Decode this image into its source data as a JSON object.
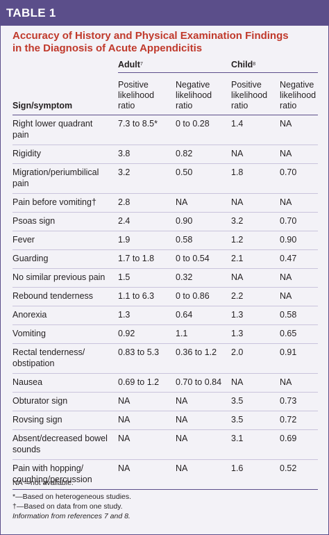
{
  "banner": "TABLE 1",
  "title_lines": [
    "Accuracy of History and Physical Examination Findings",
    "in the Diagnosis of Acute Appendicitis"
  ],
  "groups": {
    "adult": {
      "label": "Adult",
      "ref": "7"
    },
    "child": {
      "label": "Child",
      "ref": "8"
    }
  },
  "headers": {
    "symptom": "Sign/symptom",
    "positive": [
      "Positive",
      "likelihood",
      "ratio"
    ],
    "negative": [
      "Negative",
      "likelihood",
      "ratio"
    ]
  },
  "rows": [
    {
      "name": [
        "Right lower quadrant",
        "pain"
      ],
      "adult_pos": "7.3 to 8.5*",
      "adult_neg": "0 to 0.28",
      "child_pos": "1.4",
      "child_neg": "NA"
    },
    {
      "name": [
        "Rigidity"
      ],
      "adult_pos": "3.8",
      "adult_neg": "0.82",
      "child_pos": "NA",
      "child_neg": "NA"
    },
    {
      "name": [
        "Migration/periumbilical",
        "pain"
      ],
      "adult_pos": "3.2",
      "adult_neg": "0.50",
      "child_pos": "1.8",
      "child_neg": "0.70"
    },
    {
      "name": [
        "Pain before vomiting†"
      ],
      "adult_pos": "2.8",
      "adult_neg": "NA",
      "child_pos": "NA",
      "child_neg": "NA"
    },
    {
      "name": [
        "Psoas sign"
      ],
      "adult_pos": "2.4",
      "adult_neg": "0.90",
      "child_pos": "3.2",
      "child_neg": "0.70"
    },
    {
      "name": [
        "Fever"
      ],
      "adult_pos": "1.9",
      "adult_neg": "0.58",
      "child_pos": "1.2",
      "child_neg": "0.90"
    },
    {
      "name": [
        "Guarding"
      ],
      "adult_pos": "1.7 to 1.8",
      "adult_neg": "0 to 0.54",
      "child_pos": "2.1",
      "child_neg": "0.47"
    },
    {
      "name": [
        "No similar previous pain"
      ],
      "adult_pos": "1.5",
      "adult_neg": "0.32",
      "child_pos": "NA",
      "child_neg": "NA"
    },
    {
      "name": [
        "Rebound tenderness"
      ],
      "adult_pos": "1.1 to 6.3",
      "adult_neg": "0 to 0.86",
      "child_pos": "2.2",
      "child_neg": "NA"
    },
    {
      "name": [
        "Anorexia"
      ],
      "adult_pos": "1.3",
      "adult_neg": "0.64",
      "child_pos": "1.3",
      "child_neg": "0.58"
    },
    {
      "name": [
        "Vomiting"
      ],
      "adult_pos": "0.92",
      "adult_neg": "1.1",
      "child_pos": "1.3",
      "child_neg": "0.65"
    },
    {
      "name": [
        "Rectal tenderness/",
        "obstipation"
      ],
      "adult_pos": "0.83 to 5.3",
      "adult_neg": "0.36 to 1.2",
      "child_pos": "2.0",
      "child_neg": "0.91"
    },
    {
      "name": [
        "Nausea"
      ],
      "adult_pos": "0.69 to 1.2",
      "adult_neg": "0.70 to 0.84",
      "child_pos": "NA",
      "child_neg": "NA"
    },
    {
      "name": [
        "Obturator sign"
      ],
      "adult_pos": "NA",
      "adult_neg": "NA",
      "child_pos": "3.5",
      "child_neg": "0.73"
    },
    {
      "name": [
        "Rovsing sign"
      ],
      "adult_pos": "NA",
      "adult_neg": "NA",
      "child_pos": "3.5",
      "child_neg": "0.72"
    },
    {
      "name": [
        "Absent/decreased bowel",
        "sounds"
      ],
      "adult_pos": "NA",
      "adult_neg": "NA",
      "child_pos": "3.1",
      "child_neg": "0.69"
    },
    {
      "name": [
        "Pain with hopping/",
        "coughing/percussion"
      ],
      "adult_pos": "NA",
      "adult_neg": "NA",
      "child_pos": "1.6",
      "child_neg": "0.52"
    }
  ],
  "notes": {
    "abbrev": "NA = not available.",
    "footnotes": [
      "*—Based on heterogeneous studies.",
      "†—Based on data from one study."
    ],
    "source": "Information from references 7 and 8."
  },
  "colors": {
    "brand": "#5b4e8a",
    "title": "#c0392b",
    "background": "#f3f2f7"
  }
}
